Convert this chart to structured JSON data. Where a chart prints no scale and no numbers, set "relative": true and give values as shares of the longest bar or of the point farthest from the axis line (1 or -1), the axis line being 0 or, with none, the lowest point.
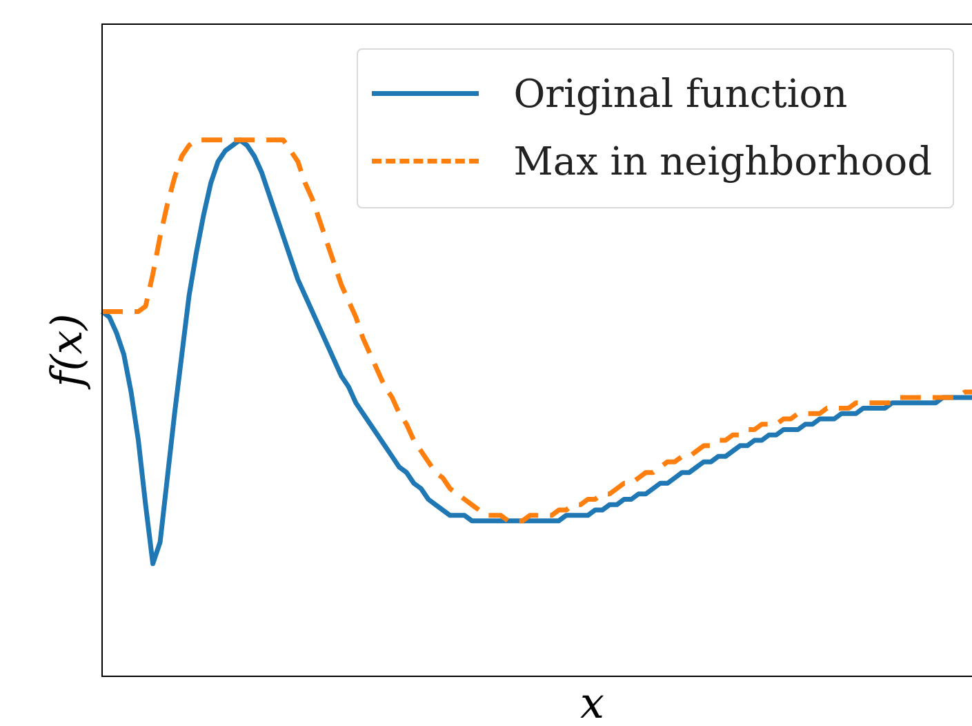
{
  "chart_data": {
    "type": "line",
    "relative": true,
    "xlabel": "x",
    "ylabel": "f(x)",
    "legend": "top right",
    "categories": [
      null,
      null,
      null,
      null,
      null,
      null,
      null,
      null,
      null,
      null,
      null,
      null,
      null,
      null,
      null,
      null,
      null,
      null,
      null,
      null,
      null,
      null,
      null,
      null,
      null,
      null,
      null,
      null,
      null,
      null,
      null,
      null,
      null,
      null,
      null,
      null,
      null,
      null,
      null,
      null,
      null,
      null,
      null,
      null,
      null,
      null,
      null,
      null,
      null,
      null,
      null,
      null,
      null,
      null,
      null,
      null,
      null,
      null,
      null,
      null,
      null,
      null,
      null,
      null,
      null,
      null,
      null,
      null,
      null,
      null,
      null,
      null,
      null,
      null,
      null,
      null,
      null,
      null,
      null,
      null,
      null,
      null,
      null,
      null,
      null,
      null,
      null,
      null,
      null,
      null,
      null,
      null,
      null,
      null,
      null,
      null,
      null,
      null,
      null,
      null,
      null,
      null,
      null,
      null,
      null,
      null,
      null,
      null,
      null,
      null,
      null,
      null,
      null,
      null,
      null,
      null,
      null,
      null,
      null,
      null,
      null
    ],
    "series": [
      {
        "name": "Original function",
        "color": "#1f77b4",
        "line_style": "solid",
        "values": [
          0.68,
          0.67,
          0.64,
          0.6,
          0.53,
          0.44,
          0.32,
          0.21,
          0.25,
          0.37,
          0.49,
          0.6,
          0.71,
          0.79,
          0.86,
          0.92,
          0.96,
          0.98,
          0.99,
          1,
          0.99,
          0.97,
          0.94,
          0.9,
          0.86,
          0.82,
          0.78,
          0.74,
          0.71,
          0.68,
          0.65,
          0.62,
          0.59,
          0.56,
          0.54,
          0.51,
          0.49,
          0.47,
          0.45,
          0.43,
          0.41,
          0.39,
          0.38,
          0.36,
          0.35,
          0.33,
          0.32,
          0.31,
          0.3,
          0.3,
          0.3,
          0.29,
          0.29,
          0.29,
          0.29,
          0.29,
          0.29,
          0.29,
          0.29,
          0.29,
          0.29,
          0.29,
          0.29,
          0.29,
          0.3,
          0.3,
          0.3,
          0.3,
          0.31,
          0.31,
          0.32,
          0.32,
          0.33,
          0.33,
          0.34,
          0.34,
          0.35,
          0.36,
          0.36,
          0.37,
          0.38,
          0.38,
          0.39,
          0.4,
          0.4,
          0.41,
          0.41,
          0.42,
          0.43,
          0.43,
          0.44,
          0.44,
          0.45,
          0.45,
          0.46,
          0.46,
          0.46,
          0.47,
          0.47,
          0.48,
          0.48,
          0.48,
          0.49,
          0.49,
          0.49,
          0.5,
          0.5,
          0.5,
          0.5,
          0.51,
          0.51,
          0.51,
          0.51,
          0.51,
          0.51,
          0.51,
          0.52,
          0.52,
          0.52,
          0.52,
          0.52
        ]
      },
      {
        "name": "Max in neighborhood",
        "color": "#ff7f0e",
        "line_style": "dashed",
        "values": [
          0.68,
          0.68,
          0.68,
          0.68,
          0.68,
          0.68,
          0.69,
          0.75,
          0.82,
          0.88,
          0.93,
          0.97,
          0.99,
          1,
          1,
          1,
          1,
          1,
          1,
          1,
          1,
          1,
          1,
          1,
          1,
          1,
          0.98,
          0.96,
          0.92,
          0.89,
          0.85,
          0.81,
          0.77,
          0.73,
          0.7,
          0.67,
          0.63,
          0.6,
          0.57,
          0.54,
          0.52,
          0.49,
          0.47,
          0.44,
          0.42,
          0.4,
          0.38,
          0.37,
          0.35,
          0.34,
          0.33,
          0.32,
          0.31,
          0.3,
          0.3,
          0.3,
          0.29,
          0.29,
          0.29,
          0.3,
          0.3,
          0.3,
          0.3,
          0.31,
          0.31,
          0.32,
          0.32,
          0.33,
          0.33,
          0.34,
          0.34,
          0.35,
          0.36,
          0.36,
          0.37,
          0.38,
          0.38,
          0.39,
          0.4,
          0.4,
          0.41,
          0.41,
          0.42,
          0.43,
          0.43,
          0.44,
          0.44,
          0.45,
          0.45,
          0.46,
          0.46,
          0.47,
          0.47,
          0.47,
          0.48,
          0.48,
          0.49,
          0.49,
          0.49,
          0.49,
          0.5,
          0.5,
          0.5,
          0.5,
          0.51,
          0.51,
          0.51,
          0.51,
          0.51,
          0.51,
          0.52,
          0.52,
          0.52,
          0.52,
          0.52,
          0.52,
          0.52,
          0.52,
          0.52,
          0.53,
          0.53
        ]
      }
    ]
  }
}
